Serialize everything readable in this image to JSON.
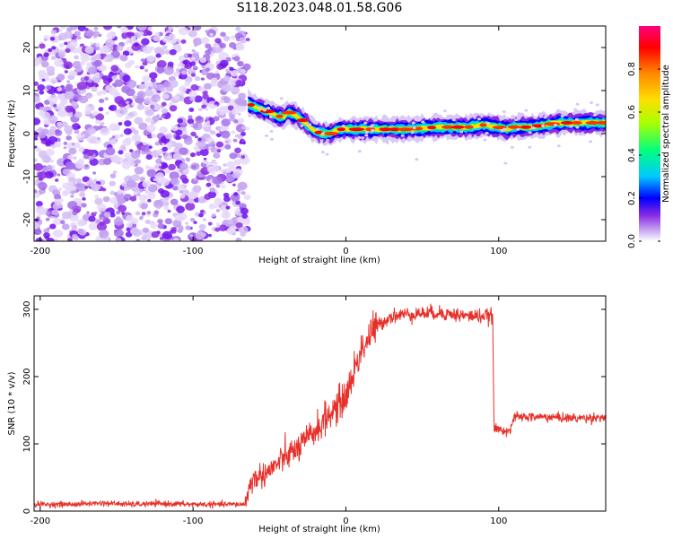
{
  "title": "S118.2023.048.01.58.G06",
  "colors": {
    "snr_line": "#e8302a",
    "axis": "#000000",
    "spectral_stops": [
      "#ffffff",
      "#c8a8f0",
      "#8a2be2",
      "#0000ff",
      "#00c8ff",
      "#00ff80",
      "#aaff00",
      "#ffdd00",
      "#ff8800",
      "#ff0000",
      "#ff0080"
    ]
  },
  "chart_data": [
    {
      "type": "heatmap",
      "title": "",
      "xlabel": "Height of straight line (km)",
      "ylabel": "Frequency (Hz)",
      "xlim": [
        -204,
        170
      ],
      "ylim": [
        -25,
        25
      ],
      "x_ticks": [
        -200,
        -100,
        0,
        100
      ],
      "y_ticks": [
        -20,
        -10,
        0,
        10,
        20
      ],
      "noise_region_x": [
        -204,
        -64
      ],
      "ridge": {
        "x": [
          -64,
          -58,
          -50,
          -45,
          -40,
          -38,
          -32,
          -28,
          -22,
          -16,
          -10,
          -5,
          0,
          5,
          10,
          20,
          40,
          60,
          80,
          90,
          100,
          105,
          110,
          120,
          140,
          170
        ],
        "y": [
          7,
          6,
          5,
          4,
          4,
          5,
          4,
          3,
          1,
          0,
          0,
          1,
          1,
          1,
          1,
          1,
          1,
          1.5,
          1.5,
          2,
          1.5,
          1,
          1.5,
          1.5,
          2.5,
          2.5
        ]
      },
      "colorbar": {
        "label": "Normalized spectral amplitude",
        "range": [
          0,
          1
        ],
        "ticks": [
          0.0,
          0.2,
          0.4,
          0.6,
          0.8
        ]
      }
    },
    {
      "type": "line",
      "title": "",
      "xlabel": "Height of straight line (km)",
      "ylabel": "SNR (10 * v/v)",
      "xlim": [
        -204,
        170
      ],
      "ylim": [
        0,
        320
      ],
      "x_ticks": [
        -200,
        -100,
        0,
        100
      ],
      "y_ticks": [
        0,
        100,
        200,
        300
      ],
      "series": [
        {
          "x": [
            -204,
            -180,
            -160,
            -140,
            -120,
            -100,
            -80,
            -66,
            -62,
            -50,
            -40,
            -30,
            -20,
            -10,
            0,
            10,
            20,
            30,
            40,
            60,
            80,
            96,
            97,
            108,
            110,
            130,
            150,
            170
          ],
          "y": [
            10,
            10,
            12,
            10,
            11,
            10,
            10,
            10,
            45,
            60,
            80,
            95,
            120,
            145,
            170,
            240,
            275,
            290,
            293,
            295,
            290,
            290,
            122,
            120,
            140,
            140,
            138,
            140
          ]
        }
      ]
    }
  ]
}
